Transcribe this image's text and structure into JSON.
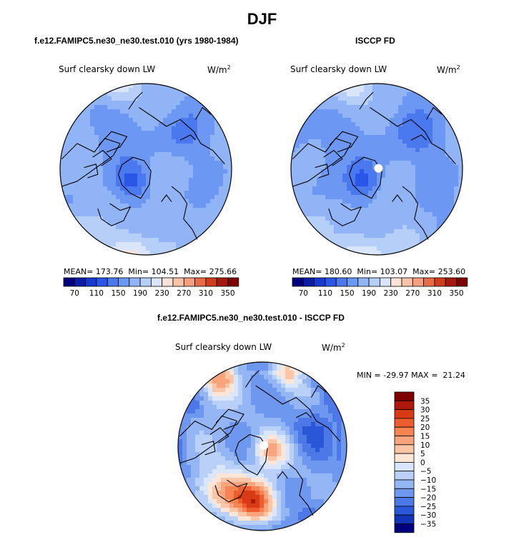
{
  "page": {
    "title": "DJF"
  },
  "chart_data": [
    {
      "type": "heatmap",
      "projection": "north polar stereographic",
      "title": "f.e12.FAMIPC5.ne30_ne30.test.010 (yrs 1980-1984)",
      "variable": "Surf clearsky down LW",
      "units_base": "W/m",
      "units_exp": "2",
      "stats": {
        "mean": "173.76",
        "min": "104.51",
        "max": "275.66"
      },
      "stats_labels": {
        "mean": "MEAN=",
        "min": "Min=",
        "max": "Max="
      },
      "colorbar": {
        "orientation": "horizontal",
        "levels": [
          70,
          90,
          110,
          130,
          150,
          170,
          190,
          210,
          230,
          250,
          270,
          290,
          310,
          330,
          350
        ],
        "tick_labels": [
          "70",
          "110",
          "150",
          "190",
          "230",
          "270",
          "310",
          "350"
        ]
      }
    },
    {
      "type": "heatmap",
      "projection": "north polar stereographic",
      "title": "ISCCP FD",
      "variable": "Surf clearsky down LW",
      "units_base": "W/m",
      "units_exp": "2",
      "stats": {
        "mean": "180.60",
        "min": "103.07",
        "max": "253.60"
      },
      "stats_labels": {
        "mean": "MEAN=",
        "min": "Min=",
        "max": "Max="
      },
      "colorbar": {
        "orientation": "horizontal",
        "levels": [
          70,
          90,
          110,
          130,
          150,
          170,
          190,
          210,
          230,
          250,
          270,
          290,
          310,
          330,
          350
        ],
        "tick_labels": [
          "70",
          "110",
          "150",
          "190",
          "230",
          "270",
          "310",
          "350"
        ]
      }
    },
    {
      "type": "heatmap",
      "projection": "north polar stereographic",
      "title": "f.e12.FAMIPC5.ne30_ne30.test.010 - ISCCP FD",
      "variable": "Surf clearsky down LW",
      "units_base": "W/m",
      "units_exp": "2",
      "stats": {
        "min": "-29.97",
        "max": "21.24"
      },
      "stats_labels": {
        "min": "MIN =",
        "max": "MAX ="
      },
      "colorbar": {
        "orientation": "vertical",
        "levels": [
          35,
          30,
          25,
          20,
          15,
          10,
          5,
          0,
          -5,
          -10,
          -15,
          -20,
          -25,
          -30,
          -35
        ],
        "tick_labels": [
          "35",
          "30",
          "25",
          "20",
          "15",
          "10",
          "5",
          "0",
          "−5",
          "−10",
          "−15",
          "−20",
          "−25",
          "−30",
          "−35"
        ]
      }
    }
  ],
  "colors": {
    "abs_scale": [
      "#00007f",
      "#0a1da8",
      "#1739cf",
      "#2b57e8",
      "#4a78ef",
      "#6c97f3",
      "#90b4f6",
      "#b6cff9",
      "#d8e5fb",
      "#fbe2d6",
      "#f9c3ab",
      "#f4a07f",
      "#e76c45",
      "#cf3d1f",
      "#a6170c",
      "#7f0000"
    ],
    "diff_scale": [
      "#7f0000",
      "#b0180b",
      "#d83a16",
      "#ee5d2f",
      "#f68453",
      "#f9a47c",
      "#fbc6a8",
      "#fde6d8",
      "#d9e6fb",
      "#b9d0f8",
      "#95b6f4",
      "#6e97ef",
      "#4c78e8",
      "#2a56d8",
      "#1235b7",
      "#00007f"
    ],
    "coast": "#000000"
  }
}
